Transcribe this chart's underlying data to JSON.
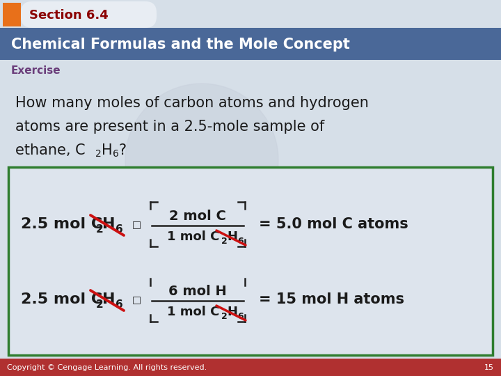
{
  "bg_color": "#d6dfe8",
  "header_tab_color": "#e8701a",
  "header_tab_text": "Section 6.4",
  "header_tab_text_color": "#8b0000",
  "header_bar_color": "#4a6898",
  "header_bar_text": "Chemical Formulas and the Mole Concept",
  "header_bar_text_color": "#ffffff",
  "exercise_label": "Exercise",
  "exercise_label_color": "#6a3d7a",
  "body_text_color": "#1a1a1a",
  "question_line1": "How many moles of carbon atoms and hydrogen",
  "question_line2": "atoms are present in a 2.5-mole sample of",
  "question_line3": "ethane, C",
  "question_line3b": "2",
  "question_line3c": "H",
  "question_line3d": "6",
  "question_line3e": "?",
  "box_border_color": "#2e7d2e",
  "box_bg_color": "#dde4ed",
  "eq1_left1": "2.5 mol C",
  "eq1_left2": "2",
  "eq1_left3": "H",
  "eq1_left4": "6",
  "eq1_mult": "□",
  "eq1_frac_num": "2 mol C",
  "eq1_frac_den1": "1 mol C",
  "eq1_frac_den2": "2",
  "eq1_frac_den3": "H",
  "eq1_frac_den4": "6",
  "eq1_right": "= 5.0 mol C atoms",
  "eq2_left1": "2.5 mol C",
  "eq2_left2": "2",
  "eq2_left3": "H",
  "eq2_left4": "6",
  "eq2_mult": "□",
  "eq2_frac_num": "6 mol H",
  "eq2_frac_den1": "1 mol C",
  "eq2_frac_den2": "2",
  "eq2_frac_den3": "H",
  "eq2_frac_den4": "6",
  "eq2_right": "= 15 mol H atoms",
  "footer_bg_color": "#b03030",
  "footer_text": "Copyright © Cengage Learning. All rights reserved.",
  "footer_page": "15",
  "footer_text_color": "#ffffff",
  "cross_color": "#cc1111",
  "bracket_color": "#222222",
  "frac_line_color": "#222222",
  "watermark_color": "#c8d0dc"
}
